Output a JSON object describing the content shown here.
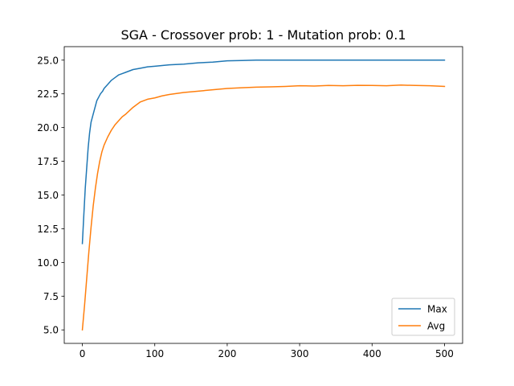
{
  "chart_data": {
    "type": "line",
    "title": "SGA - Crossover prob: 1 - Mutation prob: 0.1",
    "xlabel": "",
    "ylabel": "",
    "xlim": [
      -25,
      525
    ],
    "ylim": [
      4.0,
      26.0
    ],
    "xticks": [
      0,
      100,
      200,
      300,
      400,
      500
    ],
    "yticks": [
      5.0,
      7.5,
      10.0,
      12.5,
      15.0,
      17.5,
      20.0,
      22.5,
      25.0
    ],
    "grid": false,
    "legend_position": "lower-right",
    "series": [
      {
        "name": "Max",
        "color": "#1f77b4",
        "x": [
          0,
          2,
          4,
          6,
          8,
          10,
          12,
          15,
          18,
          20,
          23,
          25,
          28,
          30,
          35,
          40,
          45,
          50,
          55,
          60,
          70,
          80,
          90,
          100,
          120,
          140,
          160,
          180,
          200,
          220,
          240,
          260,
          300,
          350,
          400,
          450,
          500
        ],
        "y": [
          11.4,
          13.5,
          15.5,
          17.0,
          18.5,
          19.6,
          20.4,
          21.0,
          21.6,
          22.0,
          22.3,
          22.5,
          22.7,
          22.9,
          23.2,
          23.5,
          23.7,
          23.9,
          24.0,
          24.1,
          24.3,
          24.4,
          24.5,
          24.55,
          24.65,
          24.7,
          24.8,
          24.85,
          24.95,
          24.97,
          25.0,
          25.0,
          25.0,
          25.0,
          25.0,
          25.0,
          25.0
        ]
      },
      {
        "name": "Avg",
        "color": "#ff7f0e",
        "x": [
          0,
          3,
          6,
          9,
          12,
          15,
          18,
          21,
          24,
          27,
          30,
          35,
          40,
          45,
          50,
          55,
          60,
          70,
          80,
          90,
          100,
          110,
          120,
          140,
          160,
          180,
          200,
          220,
          240,
          260,
          280,
          300,
          320,
          340,
          360,
          380,
          400,
          420,
          440,
          460,
          480,
          500
        ],
        "y": [
          5.0,
          6.8,
          8.8,
          10.8,
          12.6,
          14.2,
          15.5,
          16.6,
          17.5,
          18.2,
          18.7,
          19.3,
          19.8,
          20.2,
          20.5,
          20.8,
          21.0,
          21.5,
          21.9,
          22.1,
          22.2,
          22.35,
          22.45,
          22.6,
          22.7,
          22.8,
          22.9,
          22.95,
          23.0,
          23.02,
          23.05,
          23.1,
          23.08,
          23.12,
          23.1,
          23.13,
          23.12,
          23.1,
          23.15,
          23.12,
          23.1,
          23.05
        ]
      }
    ]
  }
}
